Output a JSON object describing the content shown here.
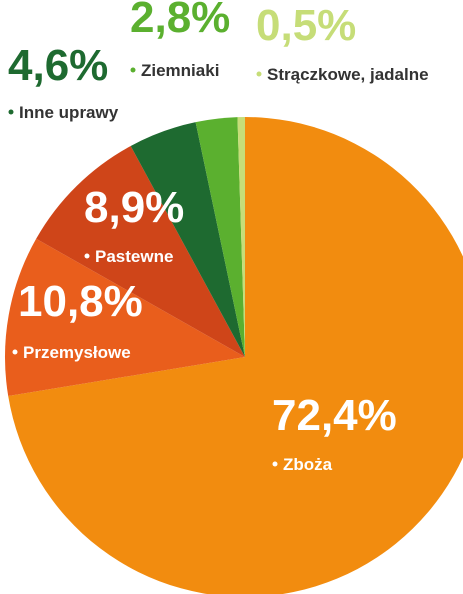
{
  "chart_data": {
    "type": "pie",
    "categories": [
      "Zboża",
      "Przemysłowe",
      "Pastewne",
      "Inne uprawy",
      "Ziemniaki",
      "Strączkowe, jadalne"
    ],
    "values": [
      72.4,
      10.8,
      8.9,
      4.6,
      2.8,
      0.5
    ],
    "value_labels": [
      "72,4%",
      "10,8%",
      "8,9%",
      "4,6%",
      "2,8%",
      "0,5%"
    ],
    "colors": [
      "#f28c0f",
      "#e95e1c",
      "#cf4519",
      "#1e6a30",
      "#5bb02f",
      "#c6dd78"
    ]
  }
}
